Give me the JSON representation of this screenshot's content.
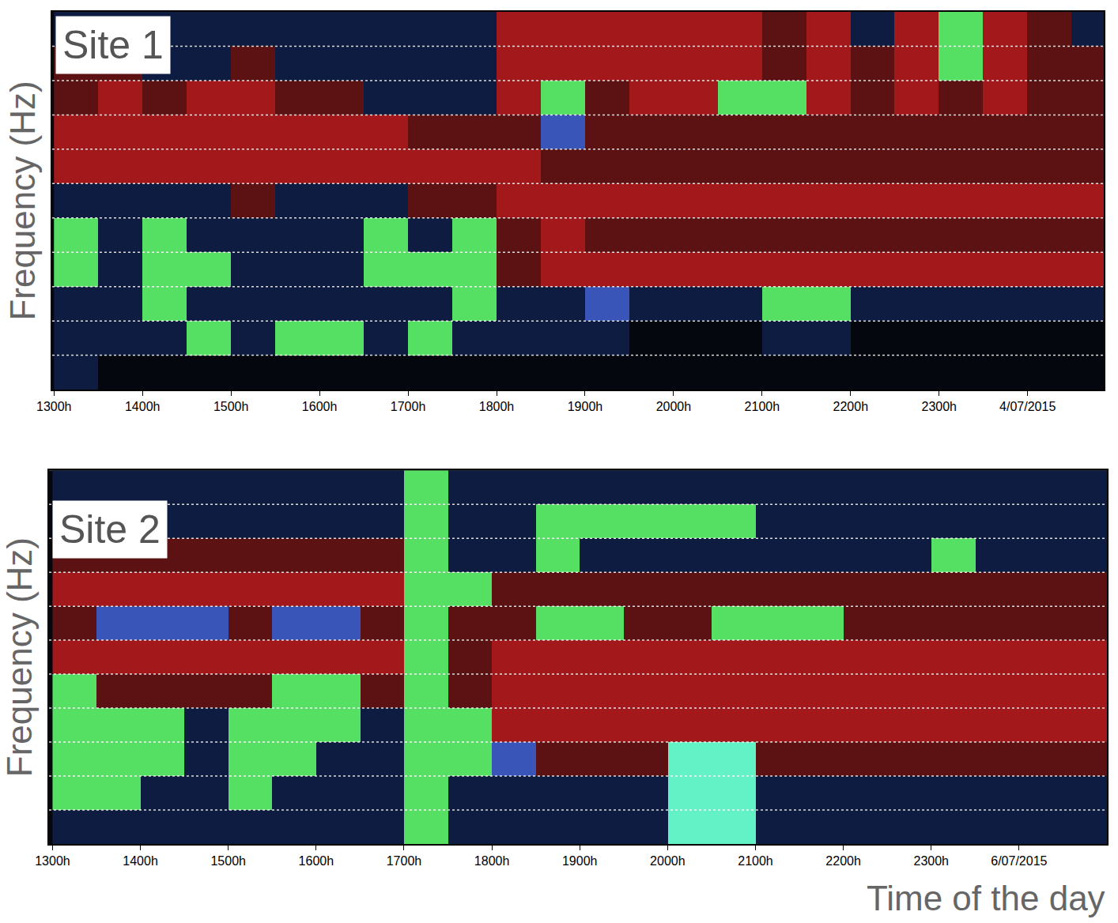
{
  "chart_data": [
    {
      "type": "heatmap",
      "title": "Site 1",
      "y_label": "Frequency (Hz)",
      "x": [
        13.25,
        13.75,
        14.25,
        14.75,
        15.25,
        15.75,
        16.25,
        16.75,
        17.25,
        17.75,
        18.25,
        18.75,
        19.25,
        19.75,
        20.25,
        20.75,
        21.25,
        21.75,
        22.25,
        22.75,
        23.25,
        23.75,
        24.25,
        24.75
      ],
      "y": [
        0.5,
        1.5,
        2.5,
        3.5,
        4.5,
        5.5,
        6.5,
        7.5,
        8.5,
        9.5,
        10.5
      ],
      "cells": [
        [
          1,
          0,
          0,
          0,
          0,
          0,
          0,
          0,
          0,
          0,
          0,
          0,
          0,
          0,
          0,
          0,
          0,
          0,
          0,
          0,
          0,
          0,
          0,
          0
        ],
        [
          1,
          1,
          1,
          4,
          1,
          4,
          4,
          1,
          4,
          1,
          1,
          1,
          1,
          0,
          0,
          0,
          1,
          1,
          0,
          0,
          0,
          0,
          0,
          0
        ],
        [
          1,
          1,
          4,
          1,
          1,
          1,
          1,
          1,
          1,
          4,
          1,
          1,
          5,
          1,
          1,
          1,
          4,
          4,
          1,
          1,
          1,
          1,
          1,
          1
        ],
        [
          4,
          1,
          4,
          4,
          1,
          1,
          1,
          4,
          4,
          4,
          2,
          3,
          3,
          3,
          3,
          3,
          3,
          3,
          3,
          3,
          3,
          3,
          3,
          3
        ],
        [
          4,
          1,
          4,
          1,
          1,
          1,
          1,
          4,
          1,
          4,
          2,
          3,
          2,
          2,
          2,
          2,
          2,
          2,
          2,
          2,
          2,
          2,
          2,
          2
        ],
        [
          1,
          1,
          1,
          1,
          2,
          1,
          1,
          1,
          2,
          2,
          3,
          3,
          3,
          3,
          3,
          3,
          3,
          3,
          3,
          3,
          3,
          3,
          3,
          3
        ],
        [
          3,
          3,
          3,
          3,
          3,
          3,
          3,
          3,
          3,
          3,
          3,
          2,
          2,
          2,
          2,
          2,
          2,
          2,
          2,
          2,
          2,
          2,
          2,
          2
        ],
        [
          3,
          3,
          3,
          3,
          3,
          3,
          3,
          3,
          2,
          2,
          2,
          5,
          2,
          2,
          2,
          2,
          2,
          2,
          2,
          2,
          2,
          2,
          2,
          2
        ],
        [
          2,
          3,
          2,
          3,
          3,
          2,
          2,
          1,
          1,
          1,
          3,
          4,
          2,
          3,
          3,
          4,
          4,
          3,
          2,
          3,
          2,
          3,
          2,
          2
        ],
        [
          2,
          2,
          1,
          1,
          2,
          1,
          1,
          1,
          1,
          1,
          3,
          3,
          3,
          3,
          3,
          3,
          2,
          3,
          2,
          3,
          4,
          3,
          2,
          2
        ],
        [
          1,
          1,
          1,
          1,
          1,
          1,
          1,
          1,
          1,
          1,
          3,
          3,
          3,
          3,
          3,
          3,
          2,
          3,
          1,
          3,
          4,
          3,
          2,
          1
        ]
      ],
      "colors": [
        "#04070d",
        "#0d1c40",
        "#5c1212",
        "#a3191b",
        "#55e063",
        "#3a55b8",
        "#62f2c6"
      ],
      "cell_range": [
        0,
        6
      ],
      "xlim": [
        12.98,
        24.86
      ],
      "xticks": [
        {
          "value": 13,
          "label": "1300h"
        },
        {
          "value": 14,
          "label": "1400h"
        },
        {
          "value": 15,
          "label": "1500h"
        },
        {
          "value": 16,
          "label": "1600h"
        },
        {
          "value": 17,
          "label": "1700h"
        },
        {
          "value": 18,
          "label": "1800h"
        },
        {
          "value": 19,
          "label": "1900h"
        },
        {
          "value": 20,
          "label": "2000h"
        },
        {
          "value": 21,
          "label": "2100h"
        },
        {
          "value": 22,
          "label": "2200h"
        },
        {
          "value": 23,
          "label": "2300h"
        },
        {
          "value": 24,
          "label": "4/07/2015"
        }
      ],
      "ylim": [
        0,
        11
      ],
      "yticks": [
        1,
        2,
        3,
        4,
        5,
        6,
        7,
        8,
        9,
        10
      ],
      "grid": true,
      "tick_labels": "x"
    },
    {
      "type": "heatmap",
      "title": "Site 2",
      "y_label": "Frequency (Hz)",
      "x_label": "Time of the day",
      "x": [
        13.25,
        13.75,
        14.25,
        14.75,
        15.25,
        15.75,
        16.25,
        16.75,
        17.25,
        17.75,
        18.25,
        18.75,
        19.25,
        19.75,
        20.25,
        20.75,
        21.25,
        21.75,
        22.25,
        22.75,
        23.25,
        23.75,
        24.25,
        24.75
      ],
      "y": [
        0.5,
        1.5,
        2.5,
        3.5,
        4.5,
        5.5,
        6.5,
        7.5,
        8.5,
        9.5,
        10.5
      ],
      "cells": [
        [
          1,
          1,
          1,
          1,
          1,
          1,
          1,
          1,
          4,
          1,
          1,
          1,
          1,
          1,
          6,
          6,
          1,
          1,
          1,
          1,
          1,
          1,
          1,
          1
        ],
        [
          4,
          4,
          1,
          1,
          4,
          1,
          1,
          1,
          4,
          1,
          1,
          1,
          1,
          1,
          6,
          6,
          1,
          1,
          1,
          1,
          1,
          1,
          1,
          1
        ],
        [
          4,
          4,
          4,
          1,
          4,
          4,
          1,
          1,
          4,
          4,
          5,
          2,
          2,
          2,
          6,
          6,
          2,
          2,
          2,
          2,
          2,
          2,
          2,
          2
        ],
        [
          4,
          4,
          4,
          1,
          4,
          4,
          4,
          1,
          4,
          4,
          3,
          3,
          3,
          3,
          3,
          3,
          3,
          3,
          3,
          3,
          3,
          3,
          3,
          3
        ],
        [
          4,
          2,
          2,
          2,
          2,
          4,
          4,
          2,
          4,
          2,
          3,
          3,
          3,
          3,
          3,
          3,
          3,
          3,
          3,
          3,
          3,
          3,
          3,
          3
        ],
        [
          3,
          3,
          3,
          3,
          3,
          3,
          3,
          3,
          4,
          2,
          3,
          3,
          3,
          3,
          3,
          3,
          3,
          3,
          3,
          3,
          3,
          3,
          3,
          3
        ],
        [
          2,
          5,
          5,
          5,
          2,
          5,
          5,
          2,
          4,
          2,
          2,
          4,
          4,
          2,
          2,
          4,
          4,
          4,
          2,
          2,
          2,
          2,
          2,
          2
        ],
        [
          3,
          3,
          3,
          3,
          3,
          3,
          3,
          3,
          4,
          4,
          2,
          2,
          2,
          2,
          2,
          2,
          2,
          2,
          2,
          2,
          2,
          2,
          2,
          2
        ],
        [
          2,
          2,
          2,
          2,
          2,
          2,
          2,
          2,
          4,
          1,
          1,
          4,
          1,
          1,
          1,
          1,
          1,
          1,
          1,
          1,
          4,
          1,
          1,
          1
        ],
        [
          1,
          1,
          1,
          1,
          1,
          1,
          1,
          1,
          4,
          1,
          1,
          4,
          4,
          4,
          4,
          4,
          1,
          1,
          1,
          1,
          1,
          1,
          1,
          1
        ],
        [
          1,
          1,
          1,
          1,
          1,
          1,
          1,
          1,
          4,
          1,
          1,
          1,
          1,
          1,
          1,
          1,
          1,
          1,
          1,
          1,
          1,
          1,
          1,
          1
        ]
      ],
      "colors": [
        "#04070d",
        "#0d1c40",
        "#5c1212",
        "#a3191b",
        "#55e063",
        "#3a55b8",
        "#62f2c6"
      ],
      "cell_range": [
        0,
        6
      ],
      "xlim": [
        12.96,
        25.0
      ],
      "xticks": [
        {
          "value": 13,
          "label": "1300h"
        },
        {
          "value": 14,
          "label": "1400h"
        },
        {
          "value": 15,
          "label": "1500h"
        },
        {
          "value": 16,
          "label": "1600h"
        },
        {
          "value": 17,
          "label": "1700h"
        },
        {
          "value": 18,
          "label": "1800h"
        },
        {
          "value": 19,
          "label": "1900h"
        },
        {
          "value": 20,
          "label": "2000h"
        },
        {
          "value": 21,
          "label": "2100h"
        },
        {
          "value": 22,
          "label": "2200h"
        },
        {
          "value": 23,
          "label": "2300h"
        },
        {
          "value": 24,
          "label": "6/07/2015"
        }
      ],
      "ylim": [
        0,
        11
      ],
      "yticks": [
        1,
        2,
        3,
        4,
        5,
        6,
        7,
        8,
        9,
        10
      ],
      "grid": true,
      "tick_labels": "x"
    }
  ]
}
